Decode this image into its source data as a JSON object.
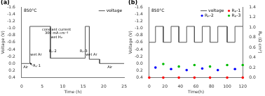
{
  "chart_data": [
    {
      "type": "line",
      "panel_label": "(a)",
      "title": "850°C",
      "xlabel": "Time (h)",
      "ylabel": "Voltage (V)",
      "xlim": [
        0,
        25
      ],
      "xticks": [
        0,
        5,
        10,
        15,
        20,
        25
      ],
      "ylim": [
        0.4,
        -1.6
      ],
      "yticks": [
        -1.6,
        -1.4,
        -1.2,
        {
          "value": -1.0,
          "label": "-1.0"
        },
        -0.8,
        -0.6,
        -0.4,
        -0.2,
        {
          "value": 0.0,
          "label": "0.0"
        },
        0.2,
        0.4
      ],
      "grid": false,
      "legend": "upper right",
      "series": [
        {
          "name": "voltage",
          "type": "line",
          "color": "#555555",
          "x": [
            0,
            2.0,
            2.0,
            7.0,
            7.0,
            15.5,
            15.5,
            16.5,
            16.5,
            19.0,
            19.0,
            25
          ],
          "values": [
            0.0,
            0.0,
            -1.05,
            -1.05,
            -0.15,
            -0.15,
            -1.05,
            -1.05,
            -0.12,
            -0.12,
            0.0,
            0.0
          ]
        }
      ],
      "annotations": [
        {
          "text": "wet H₂",
          "x": 8.5,
          "y": -0.72
        },
        {
          "text": "300 mA cm⁻²",
          "x": 8.5,
          "y": -0.83
        },
        {
          "text": "constant current",
          "x": 8.5,
          "y": -0.94
        },
        {
          "text": "wet Ar",
          "x": 3.5,
          "y": -0.22
        },
        {
          "text": "wet Ar",
          "x": 17.0,
          "y": -0.22
        },
        {
          "text": "Air",
          "x": 0.4,
          "y": 0.13,
          "align": "left"
        },
        {
          "text": "Air",
          "x": 21.5,
          "y": 0.13
        },
        {
          "text": "Rₚ-1",
          "x": 2.8,
          "y": 0.1,
          "align": "left",
          "arrow_to": [
            2.05,
            -0.02
          ]
        },
        {
          "text": "Rₚ-2",
          "x": 6.7,
          "y": -0.33,
          "align": "left"
        },
        {
          "text": "Rₚ-3",
          "x": 14.2,
          "y": -0.33,
          "align": "left"
        }
      ]
    },
    {
      "type": "line",
      "panel_label": "(b)",
      "title": "850°C",
      "xlabel": "Time(h)",
      "ylabel": "Voltage (V)",
      "y2label": "Rₚ (Ω cm²)",
      "xlim": [
        0,
        120
      ],
      "xticks": [
        0,
        20,
        40,
        60,
        80,
        100,
        120
      ],
      "ylim": [
        0.4,
        -1.6
      ],
      "yticks": [
        -1.6,
        -1.4,
        -1.2,
        {
          "value": -1.0,
          "label": "-1.0"
        },
        -0.8,
        -0.6,
        -0.4,
        -0.2,
        {
          "value": 0.0,
          "label": "0.0"
        },
        0.2,
        0.4
      ],
      "y2lim": [
        0.0,
        1.4
      ],
      "y2ticks": [
        {
          "value": 0.0,
          "label": "0.0"
        },
        0.2,
        0.4,
        0.6,
        0.8,
        {
          "value": 1.0,
          "label": "1.0"
        },
        1.2,
        1.4
      ],
      "grid": false,
      "legend": "upper right",
      "series": [
        {
          "name": "voltage",
          "type": "line",
          "color": "#555555",
          "x": [
            0,
            8,
            8,
            18,
            18,
            28,
            28,
            38,
            38,
            48,
            48,
            58,
            58,
            68,
            68,
            78,
            78,
            88,
            88,
            100,
            100,
            110,
            110,
            120
          ],
          "values": [
            -0.6,
            -0.6,
            -1.05,
            -1.05,
            -0.6,
            -0.6,
            -1.05,
            -1.05,
            -0.6,
            -0.6,
            -1.05,
            -1.05,
            -0.6,
            -0.6,
            -1.05,
            -1.05,
            -0.6,
            -0.6,
            -1.05,
            -1.05,
            -0.6,
            -0.6,
            -1.05,
            -1.05
          ]
        },
        {
          "name": "Rₚ-1",
          "type": "scatter",
          "axis": "y2",
          "color": "#ff0000",
          "marker": "circle",
          "x": [
            0,
            18,
            38,
            58,
            78,
            100,
            120
          ],
          "values": [
            0.0,
            0.0,
            0.0,
            0.0,
            0.0,
            0.0,
            0.0
          ]
        },
        {
          "name": "Rₚ-2",
          "type": "scatter",
          "axis": "y2",
          "color": "#0000ff",
          "marker": "circle",
          "x": [
            8,
            28,
            48,
            68,
            88,
            110
          ],
          "values": [
            0.2,
            0.17,
            0.15,
            0.18,
            0.15,
            0.17
          ]
        },
        {
          "name": "Rₚ-3",
          "type": "scatter",
          "axis": "y2",
          "color": "#00bb00",
          "marker": "circle",
          "x": [
            18,
            38,
            58,
            78,
            100,
            120
          ],
          "values": [
            0.27,
            0.22,
            0.25,
            0.22,
            0.25,
            0.25
          ]
        }
      ]
    }
  ]
}
